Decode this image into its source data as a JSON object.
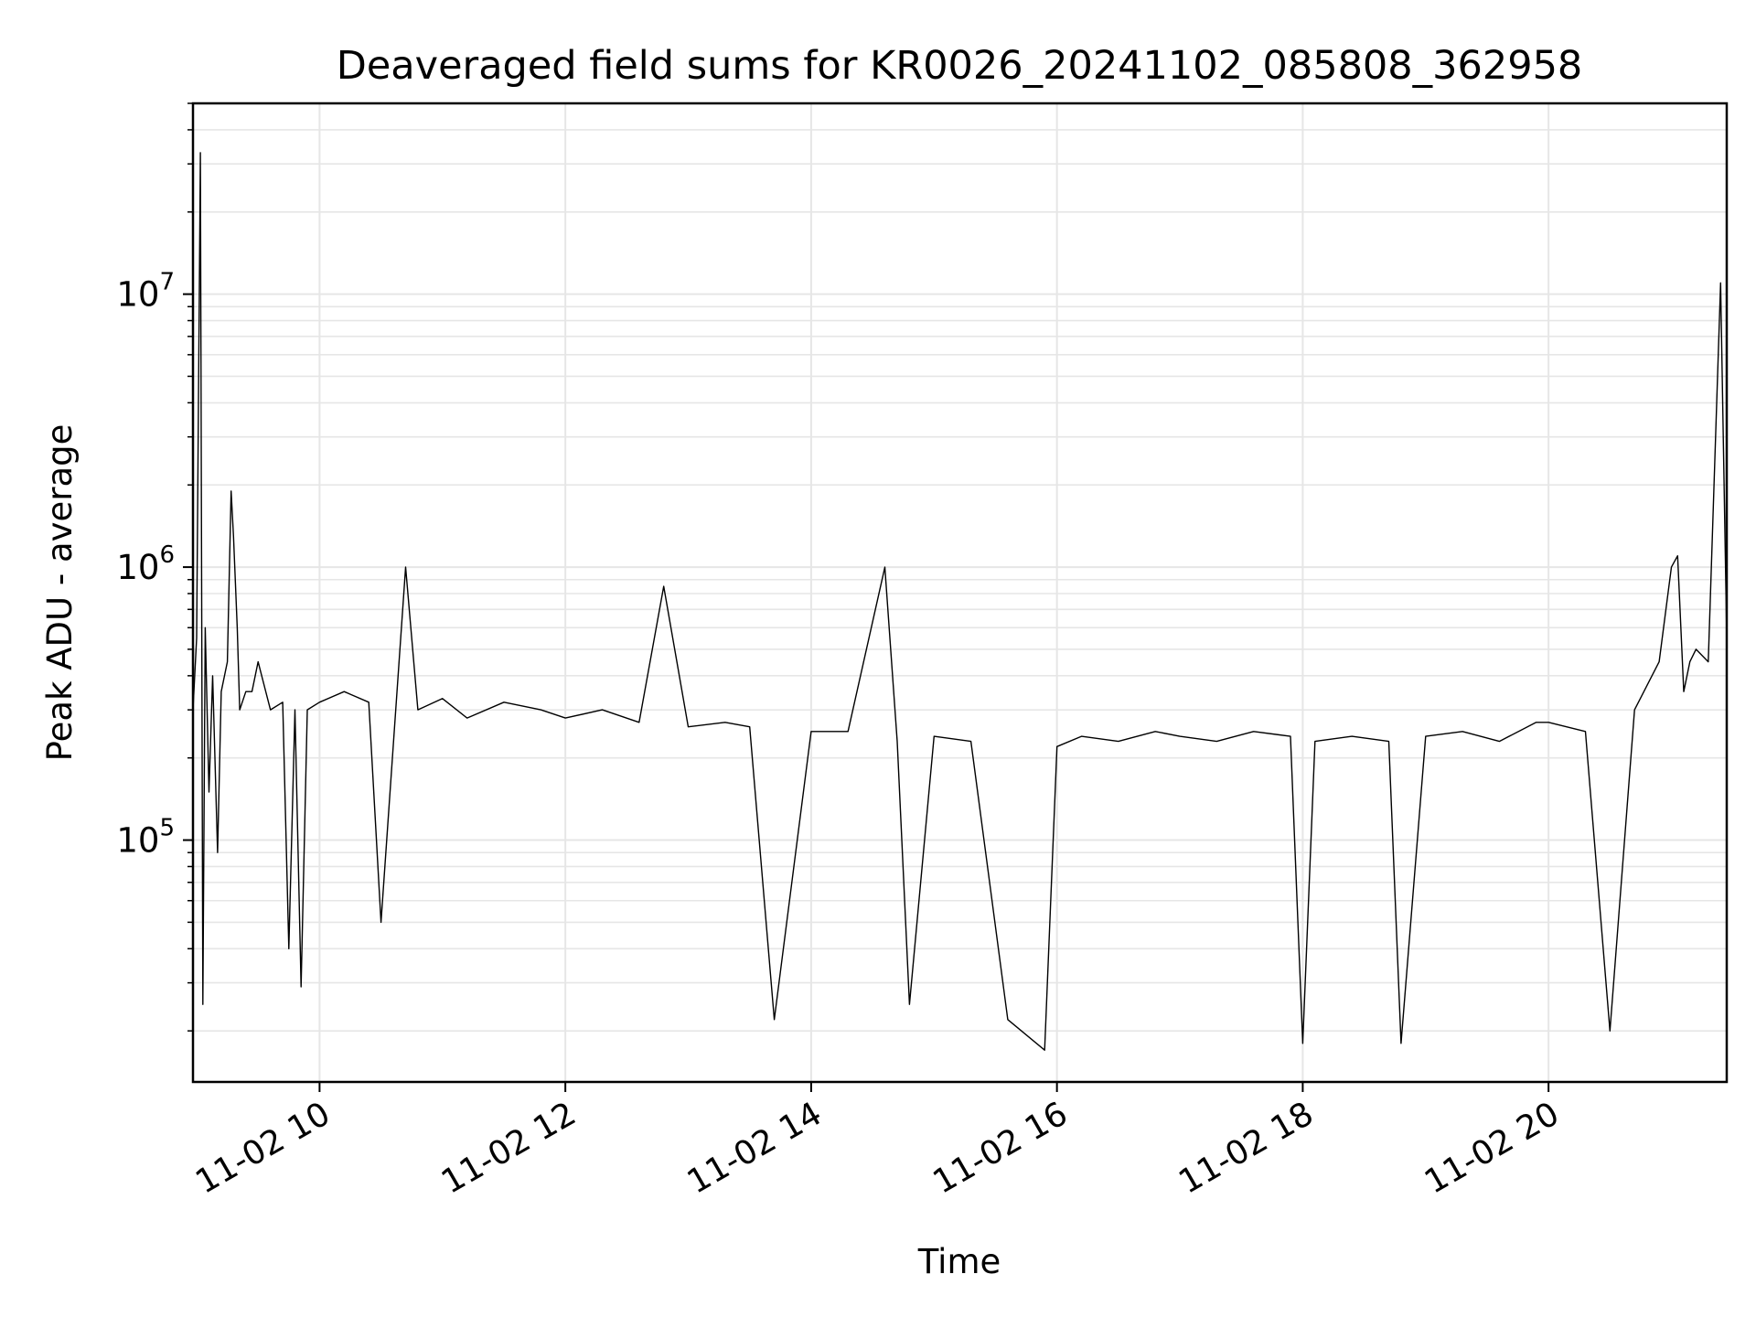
{
  "chart_data": {
    "type": "line",
    "title": "Deaveraged field sums for KR0026_20241102_085808_362958",
    "xlabel": "Time",
    "ylabel": "Peak ADU - average",
    "yscale": "log",
    "grid": true,
    "grid_color": "#e6e6e6",
    "line_color": "#000000",
    "xlim_hours": [
      8.97,
      21.45
    ],
    "ylim": [
      13000,
      50000000
    ],
    "x_ticks": [
      {
        "hour": 10,
        "label": "11-02 10"
      },
      {
        "hour": 12,
        "label": "11-02 12"
      },
      {
        "hour": 14,
        "label": "11-02 14"
      },
      {
        "hour": 16,
        "label": "11-02 16"
      },
      {
        "hour": 18,
        "label": "11-02 18"
      },
      {
        "hour": 20,
        "label": "11-02 20"
      }
    ],
    "y_ticks": [
      {
        "value": 100000,
        "base": "10",
        "exp": "5"
      },
      {
        "value": 1000000,
        "base": "10",
        "exp": "6"
      },
      {
        "value": 10000000,
        "base": "10",
        "exp": "7"
      }
    ],
    "series": [
      {
        "x_hours": [
          8.97,
          9.0,
          9.03,
          9.05,
          9.07,
          9.1,
          9.13,
          9.17,
          9.2,
          9.25,
          9.28,
          9.3,
          9.33,
          9.35,
          9.4,
          9.45,
          9.5,
          9.6,
          9.7,
          9.75,
          9.8,
          9.85,
          9.9,
          10.0,
          10.2,
          10.4,
          10.5,
          10.7,
          10.8,
          11.0,
          11.2,
          11.5,
          11.8,
          12.0,
          12.3,
          12.6,
          12.8,
          13.0,
          13.3,
          13.5,
          13.7,
          14.0,
          14.3,
          14.6,
          14.7,
          14.8,
          15.0,
          15.3,
          15.6,
          15.9,
          16.0,
          16.2,
          16.5,
          16.8,
          17.0,
          17.3,
          17.6,
          17.9,
          18.0,
          18.1,
          18.4,
          18.7,
          18.8,
          19.0,
          19.3,
          19.6,
          19.9,
          20.0,
          20.3,
          20.5,
          20.7,
          20.9,
          21.0,
          21.05,
          21.1,
          21.15,
          21.2,
          21.3,
          21.4,
          21.45
        ],
        "values": [
          300000,
          550000,
          33000000,
          25000,
          600000,
          150000,
          400000,
          90000,
          350000,
          450000,
          1900000,
          1300000,
          600000,
          300000,
          350000,
          350000,
          450000,
          300000,
          320000,
          40000,
          300000,
          29000,
          300000,
          320000,
          350000,
          320000,
          50000,
          1000000,
          300000,
          330000,
          280000,
          320000,
          300000,
          280000,
          300000,
          270000,
          850000,
          260000,
          270000,
          260000,
          22000,
          250000,
          250000,
          1000000,
          230000,
          25000,
          240000,
          230000,
          22000,
          17000,
          220000,
          240000,
          230000,
          250000,
          240000,
          230000,
          250000,
          240000,
          18000,
          230000,
          240000,
          230000,
          18000,
          240000,
          250000,
          230000,
          270000,
          270000,
          250000,
          20000,
          300000,
          450000,
          1000000,
          1100000,
          350000,
          450000,
          500000,
          450000,
          11000000,
          550000
        ]
      }
    ]
  }
}
